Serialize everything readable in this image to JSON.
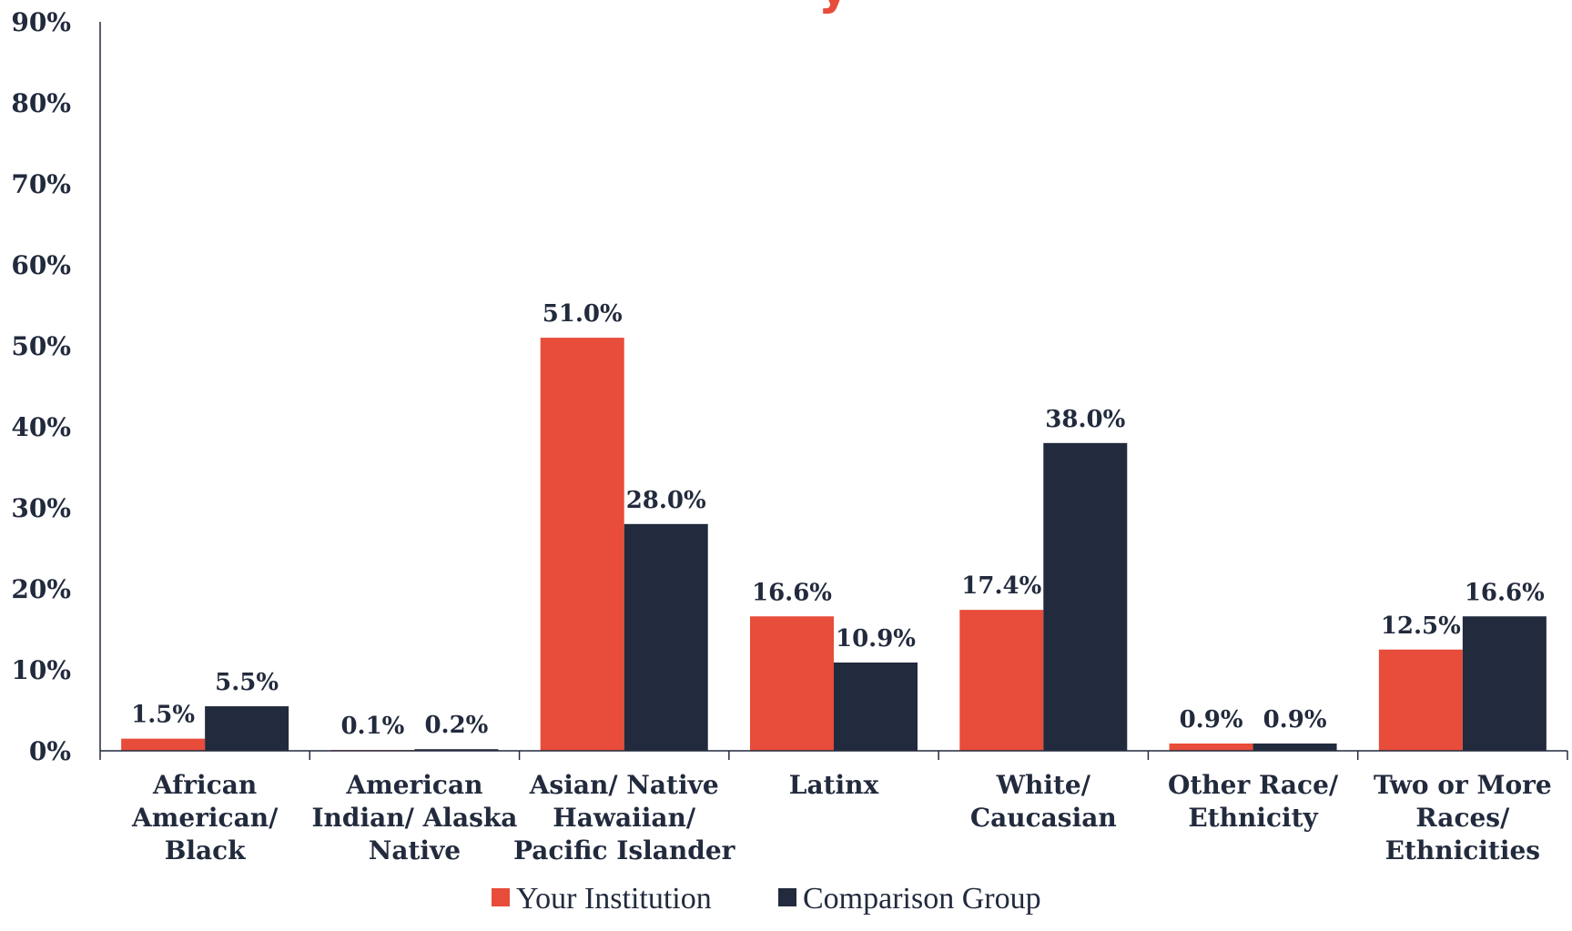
{
  "colors": {
    "your_institution": "#e84c3a",
    "comparison_group": "#222a3d",
    "axis": "#222a3d",
    "text": "#222a3d"
  },
  "chart_data": {
    "type": "bar",
    "title_fragment": "y",
    "categories": [
      [
        "African",
        "American/",
        "Black"
      ],
      [
        "American",
        "Indian/ Alaska",
        "Native"
      ],
      [
        "Asian/ Native",
        "Hawaiian/",
        "Pacific Islander"
      ],
      [
        "Latinx"
      ],
      [
        "White/",
        "Caucasian"
      ],
      [
        "Other Race/",
        "Ethnicity"
      ],
      [
        "Two or More",
        "Races/",
        "Ethnicities"
      ]
    ],
    "series": [
      {
        "name": "Your Institution",
        "color": "#e84c3a",
        "values": [
          1.5,
          0.1,
          51.0,
          16.6,
          17.4,
          0.9,
          12.5
        ],
        "labels": [
          "1.5%",
          "0.1%",
          "51.0%",
          "16.6%",
          "17.4%",
          "0.9%",
          "12.5%"
        ]
      },
      {
        "name": "Comparison Group",
        "color": "#222a3d",
        "values": [
          5.5,
          0.2,
          28.0,
          10.9,
          38.0,
          0.9,
          16.6
        ],
        "labels": [
          "5.5%",
          "0.2%",
          "28.0%",
          "10.9%",
          "38.0%",
          "0.9%",
          "16.6%"
        ]
      }
    ],
    "y_ticks": [
      "0%",
      "10%",
      "20%",
      "30%",
      "40%",
      "50%",
      "60%",
      "70%",
      "80%",
      "90%"
    ],
    "ylim": [
      0,
      90
    ],
    "grid": false,
    "legend_position": "bottom-center"
  }
}
